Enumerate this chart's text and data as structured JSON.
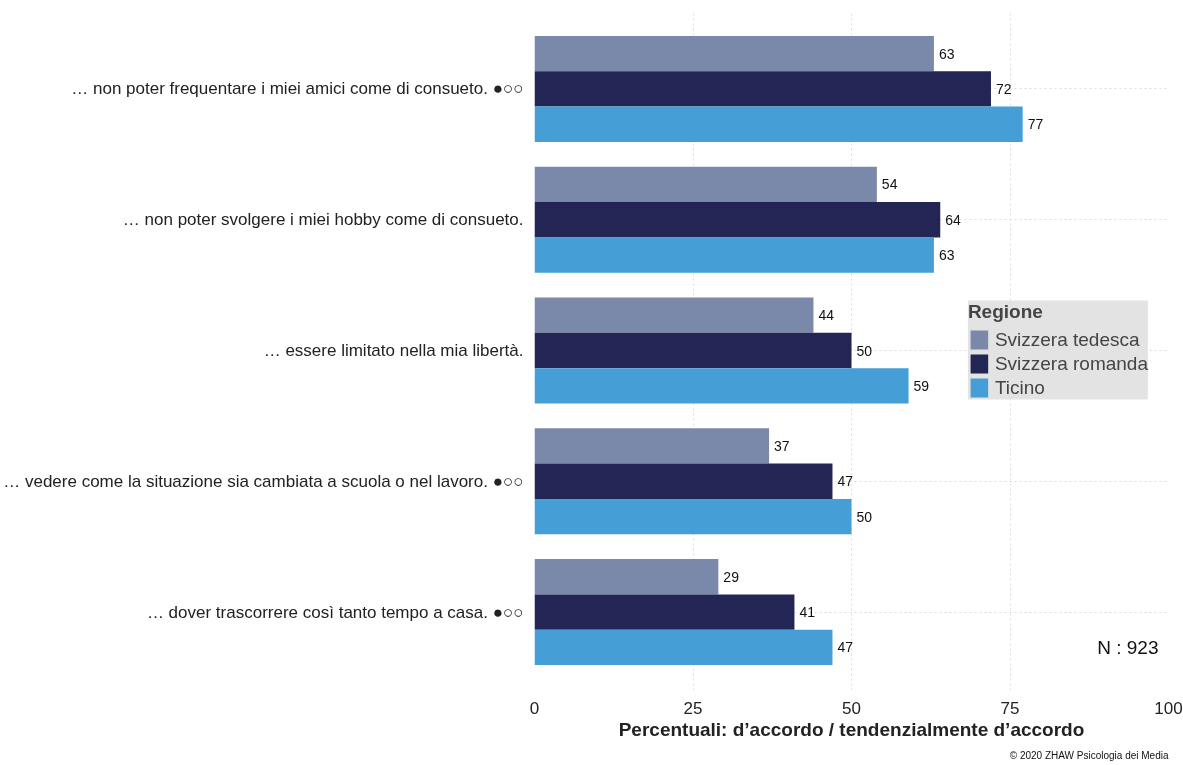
{
  "chart_data": {
    "type": "bar",
    "orientation": "horizontal",
    "categories": [
      "… non poter frequentare i miei amici come di consueto. ●○○",
      "… non poter svolgere i miei hobby come di consueto.",
      "… essere limitato nella mia libertà.",
      "… vedere come la situazione sia cambiata a scuola o nel lavoro. ●○○",
      "… dover trascorrere così tanto tempo a casa. ●○○"
    ],
    "series": [
      {
        "name": "Svizzera tedesca",
        "color": "#7a89aa",
        "values": [
          63,
          54,
          44,
          37,
          29
        ]
      },
      {
        "name": "Svizzera romanda",
        "color": "#232654",
        "values": [
          72,
          64,
          50,
          47,
          41
        ]
      },
      {
        "name": "Ticino",
        "color": "#459fd6",
        "values": [
          77,
          63,
          59,
          50,
          47
        ]
      }
    ],
    "xlabel": "Percentuali: d’accordo / tendenzialmente d’accordo",
    "legend_title": "Regione",
    "xlim": [
      0,
      100
    ],
    "xticks": [
      0,
      25,
      50,
      75,
      100
    ],
    "grid": true,
    "legend": "right",
    "data_labels": true,
    "annotations": [
      "N : 923",
      "© 2020 ZHAW Psicologia dei Media"
    ]
  }
}
